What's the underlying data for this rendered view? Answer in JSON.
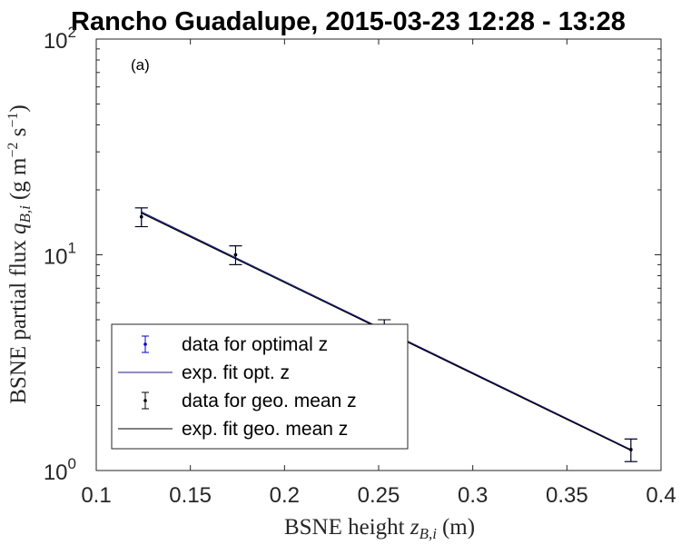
{
  "chart_data": {
    "type": "line",
    "title": "Rancho Guadalupe, 2015-03-23 12:28 - 13:28",
    "panel_label": "(a)",
    "xlabel": {
      "text": "BSNE height",
      "var": "z",
      "sub": "B,i",
      "unit": "(m)"
    },
    "ylabel": {
      "text": "BSNE partial flux",
      "var": "q",
      "sub": "B,i",
      "unit_pre": "(g m",
      "exp1": "−2",
      "unit_mid": " s",
      "exp2": "−1",
      "unit_post": ")"
    },
    "xlim": [
      0.1,
      0.4
    ],
    "ylim": [
      1,
      100
    ],
    "yscale": "log",
    "xticks": [
      "0.1",
      "0.15",
      "0.2",
      "0.25",
      "0.3",
      "0.35",
      "0.4"
    ],
    "yticks": [
      {
        "base": "10",
        "exp": "0"
      },
      {
        "base": "10",
        "exp": "1"
      },
      {
        "base": "10",
        "exp": "2"
      }
    ],
    "series": [
      {
        "name": "data for optimal z",
        "kind": "errorbar",
        "color": "#0000cc",
        "points": [
          {
            "x": 0.124,
            "y": 15.0,
            "lo": 13.5,
            "hi": 16.5
          },
          {
            "x": 0.174,
            "y": 10.0,
            "lo": 9.0,
            "hi": 11.0
          },
          {
            "x": 0.253,
            "y": 4.5,
            "lo": 4.1,
            "hi": 5.0
          },
          {
            "x": 0.384,
            "y": 1.25,
            "lo": 1.1,
            "hi": 1.4
          }
        ]
      },
      {
        "name": "exp. fit opt. z",
        "kind": "line",
        "color": "#1a1a8c",
        "x": [
          0.124,
          0.384
        ],
        "y": [
          15.8,
          1.25
        ]
      },
      {
        "name": "data for geo. mean z",
        "kind": "errorbar",
        "color": "#000000",
        "points": [
          {
            "x": 0.124,
            "y": 15.0,
            "lo": 13.5,
            "hi": 16.5
          },
          {
            "x": 0.174,
            "y": 10.0,
            "lo": 9.0,
            "hi": 11.0
          },
          {
            "x": 0.253,
            "y": 4.5,
            "lo": 4.1,
            "hi": 5.0
          },
          {
            "x": 0.384,
            "y": 1.25,
            "lo": 1.1,
            "hi": 1.4
          }
        ]
      },
      {
        "name": "exp. fit geo. mean z",
        "kind": "line",
        "color": "#000000",
        "x": [
          0.124,
          0.384
        ],
        "y": [
          15.6,
          1.24
        ]
      }
    ],
    "legend_position": "bottom-left",
    "grid": false
  }
}
